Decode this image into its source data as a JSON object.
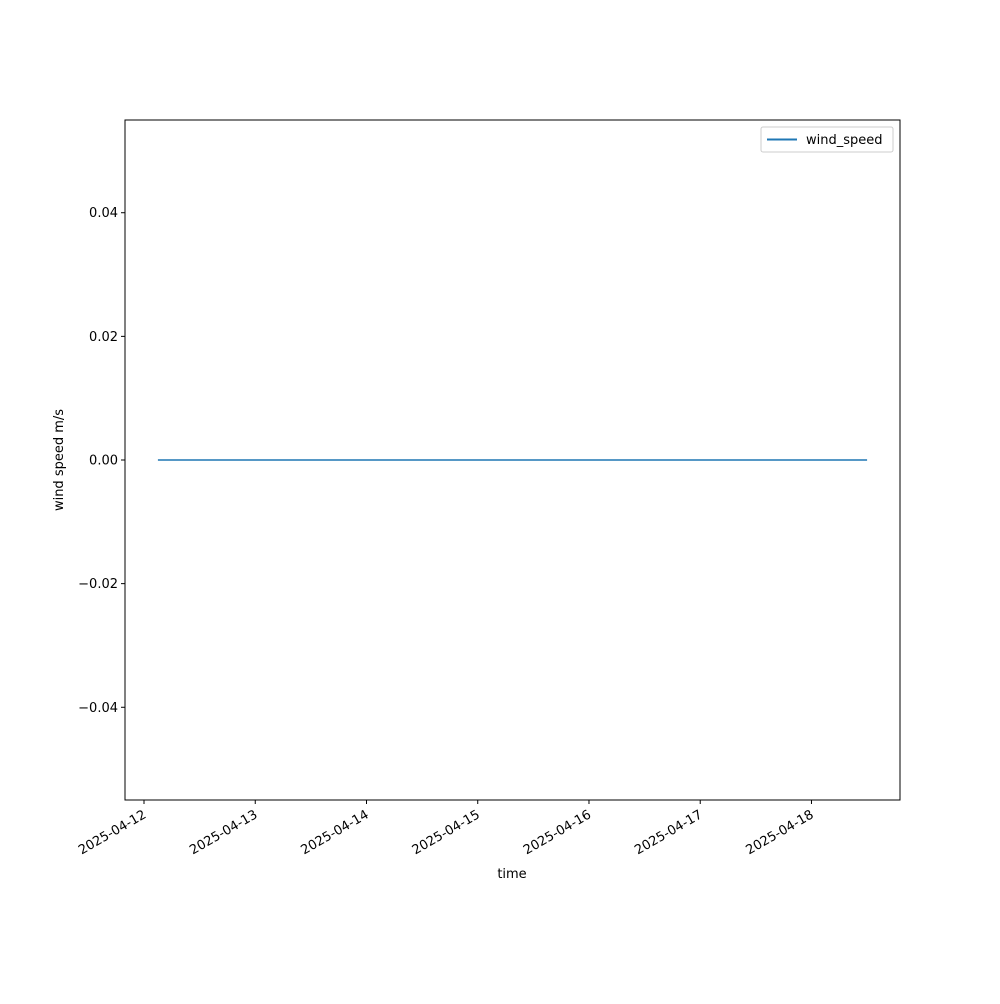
{
  "chart_data": {
    "type": "line",
    "title": "",
    "xlabel": "time",
    "ylabel": "wind speed m/s",
    "x_ticks": [
      "2025-04-12",
      "2025-04-13",
      "2025-04-14",
      "2025-04-15",
      "2025-04-16",
      "2025-04-17",
      "2025-04-18"
    ],
    "y_ticks": [
      -0.04,
      -0.02,
      0.0,
      0.02,
      0.04
    ],
    "y_tick_labels": [
      "−0.04",
      "−0.02",
      "0.00",
      "0.02",
      "0.04"
    ],
    "xlim": [
      "2025-04-11T19:54",
      "2025-04-18T19:06"
    ],
    "ylim": [
      -0.055,
      0.055
    ],
    "grid": false,
    "legend_position": "upper-right",
    "series": [
      {
        "name": "wind_speed",
        "color": "#1f77b4",
        "x": [
          "2025-04-12T03:00",
          "2025-04-18T12:00"
        ],
        "y": [
          0,
          0
        ]
      }
    ]
  }
}
